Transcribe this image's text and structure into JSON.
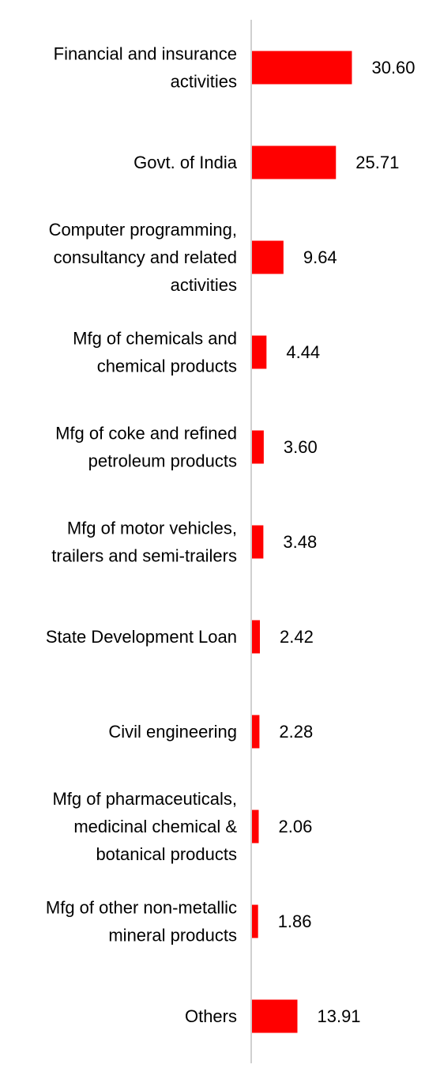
{
  "chart_data": {
    "type": "bar",
    "orientation": "horizontal",
    "categories": [
      [
        "Financial and insurance",
        "activities"
      ],
      [
        "Govt. of India"
      ],
      [
        "Computer programming,",
        "consultancy and related",
        "activities"
      ],
      [
        "Mfg of chemicals and",
        "chemical products"
      ],
      [
        "Mfg of coke and refined",
        "petroleum products"
      ],
      [
        "Mfg of motor vehicles,",
        "trailers and semi-trailers"
      ],
      [
        "State Development Loan"
      ],
      [
        "Civil engineering"
      ],
      [
        "Mfg of pharmaceuticals,",
        "medicinal chemical &",
        "botanical products"
      ],
      [
        "Mfg of other non-metallic",
        "mineral products"
      ],
      [
        "Others"
      ]
    ],
    "values": [
      30.6,
      25.71,
      9.64,
      4.44,
      3.6,
      3.48,
      2.42,
      2.28,
      2.06,
      1.86,
      13.91
    ],
    "value_labels": [
      "30.60",
      "25.71",
      "9.64",
      "4.44",
      "3.60",
      "3.48",
      "2.42",
      "2.28",
      "2.06",
      "1.86",
      "13.91"
    ],
    "xlim": [
      0,
      90
    ],
    "bar_color": "#ff0000",
    "axis_color": "#d0d0d0",
    "title": "",
    "xlabel": "",
    "ylabel": "",
    "grid": false,
    "legend": "none"
  }
}
